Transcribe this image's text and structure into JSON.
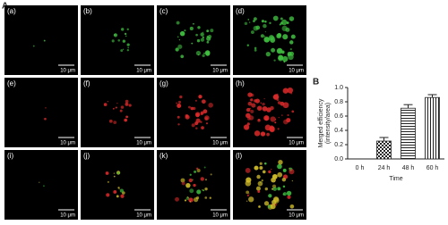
{
  "figure": {
    "panel_labels": [
      "A",
      "B"
    ],
    "images": [
      {
        "label": "(a)",
        "scale": "10 μm"
      },
      {
        "label": "(b)",
        "scale": "10 μm"
      },
      {
        "label": "(c)",
        "scale": "10 μm"
      },
      {
        "label": "(d)",
        "scale": "10 μm"
      },
      {
        "label": "(e)",
        "scale": "10 μm"
      },
      {
        "label": "(f)",
        "scale": "10 μm"
      },
      {
        "label": "(g)",
        "scale": "10 μm"
      },
      {
        "label": "(h)",
        "scale": "10 μm"
      },
      {
        "label": "(i)",
        "scale": "10 μm"
      },
      {
        "label": "(j)",
        "scale": "10 μm"
      },
      {
        "label": "(k)",
        "scale": "10 μm"
      },
      {
        "label": "(l)",
        "scale": "10 μm"
      }
    ]
  },
  "chart_data": {
    "type": "bar",
    "ylabel": [
      "Merged efficiency",
      "(intensity/area)"
    ],
    "xlabel": "Time",
    "categories": [
      "0 h",
      "24 h",
      "48 h",
      "60 h"
    ],
    "values": [
      0,
      0.25,
      0.71,
      0.86
    ],
    "errors": [
      null,
      0.05,
      0.05,
      0.04
    ],
    "patterns": [
      "none",
      "checker",
      "hlines",
      "vlines"
    ],
    "ylim": [
      0,
      1.0
    ],
    "yticks": [
      {
        "value": 0,
        "label": "0.0"
      },
      {
        "value": 0.2,
        "label": "0.2"
      },
      {
        "value": 0.4,
        "label": "0.4"
      },
      {
        "value": 0.6,
        "label": "0.6"
      },
      {
        "value": 0.8,
        "label": "0.8"
      },
      {
        "value": 1.0,
        "label": "1.0"
      }
    ]
  }
}
